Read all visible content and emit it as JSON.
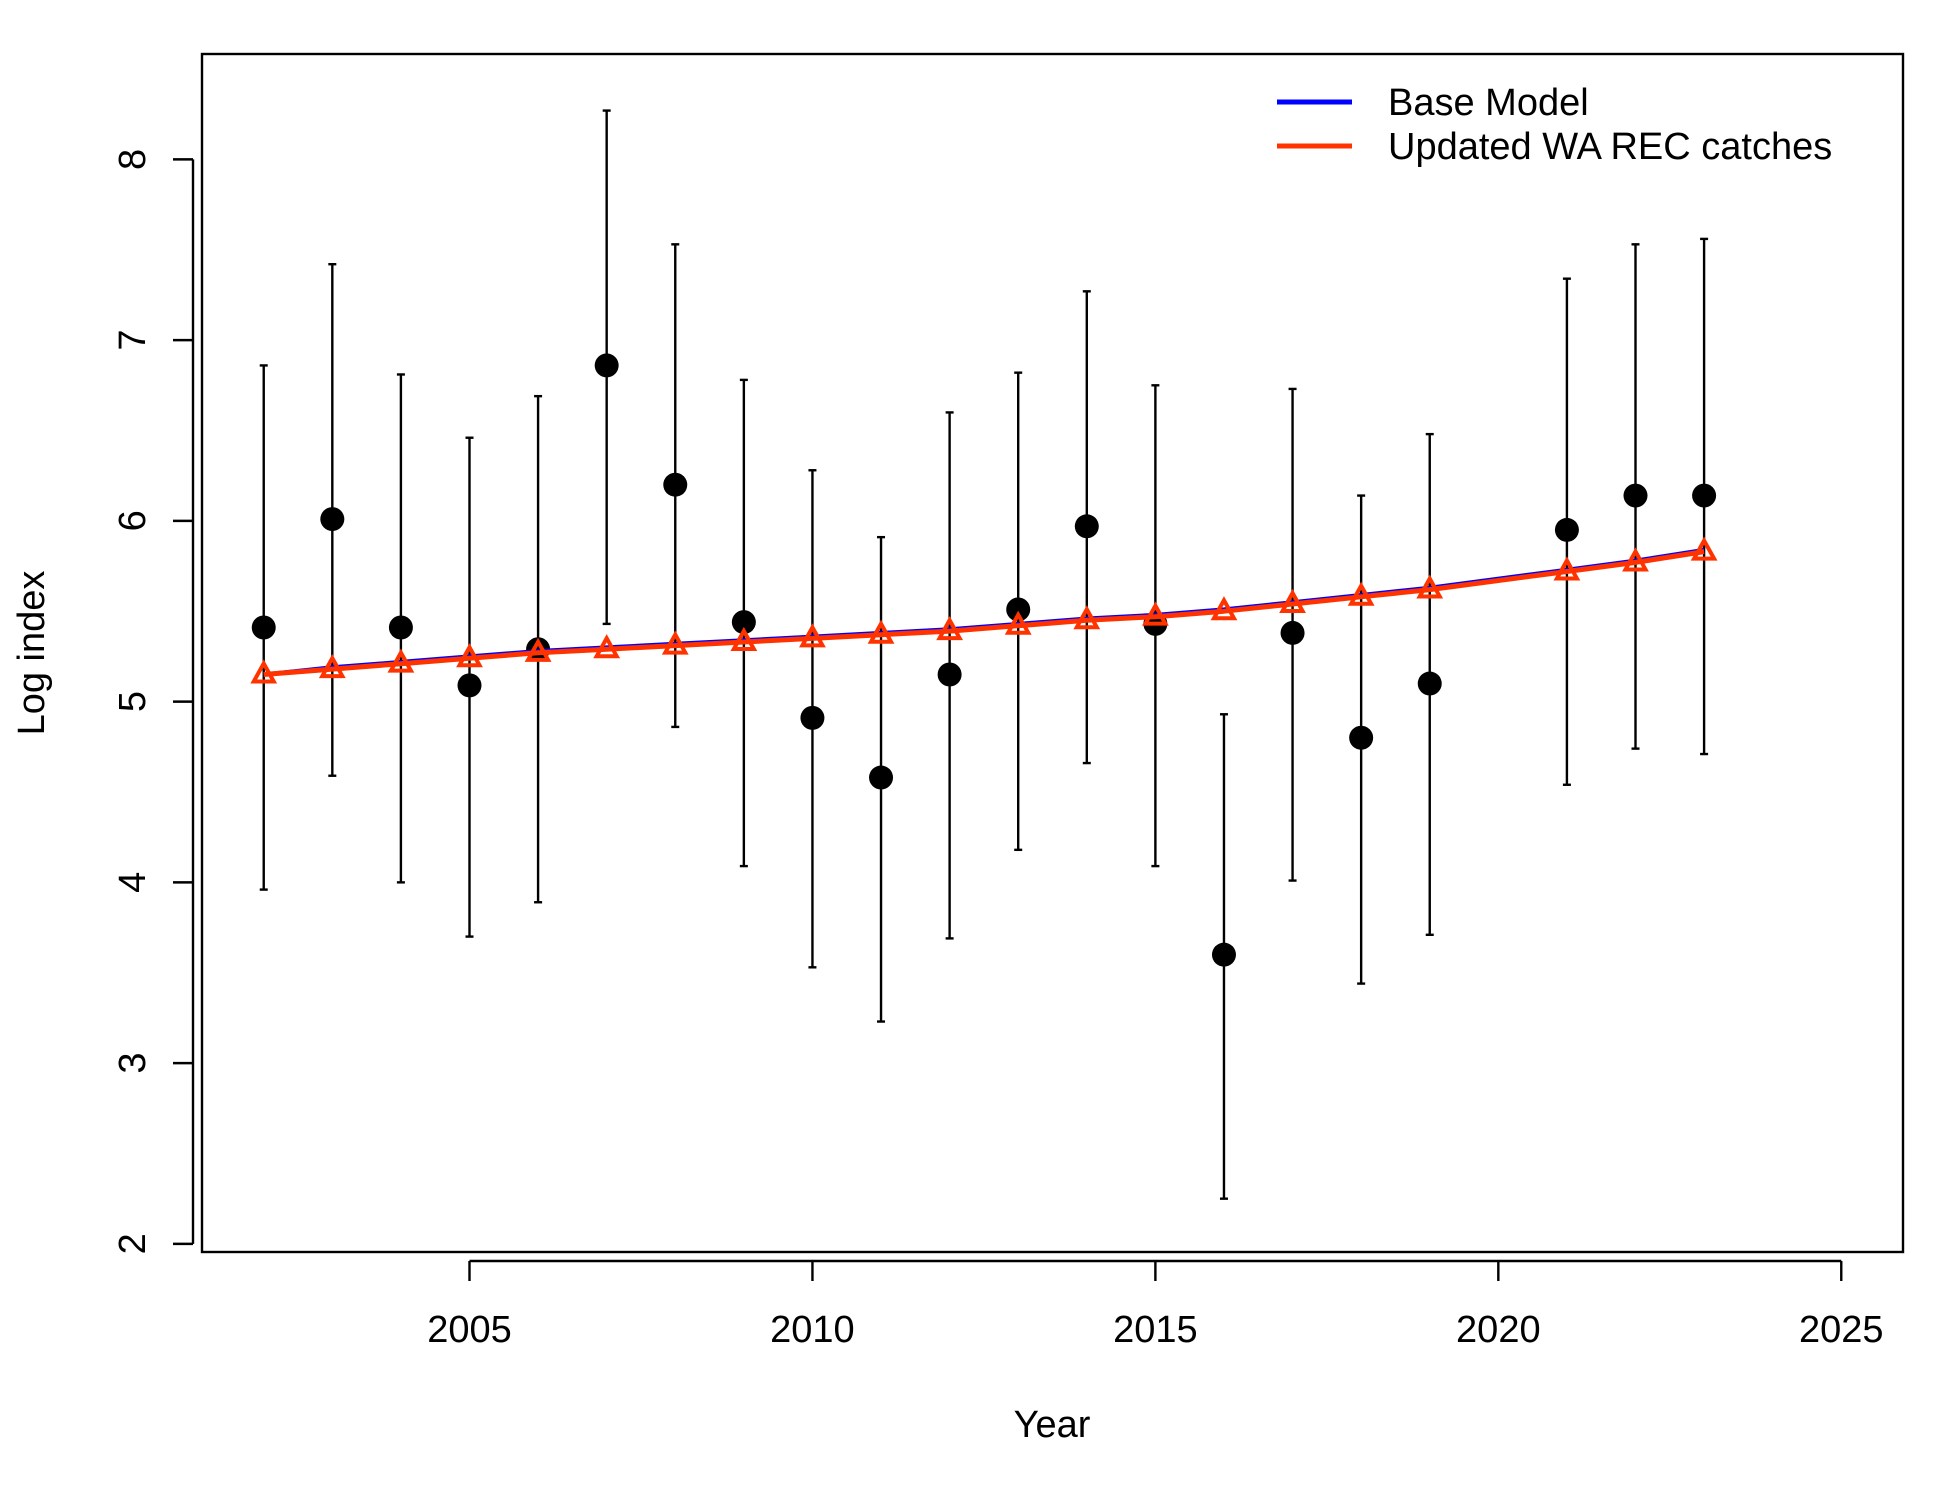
{
  "chart_data": {
    "type": "scatter",
    "xlabel": "Year",
    "ylabel": "Log index",
    "xlim": [
      2001.1,
      2025.9
    ],
    "ylim": [
      1.955,
      8.583
    ],
    "x_ticks": [
      2005,
      2010,
      2015,
      2020,
      2025
    ],
    "y_ticks": [
      2,
      3,
      4,
      5,
      6,
      7,
      8
    ],
    "grid": false,
    "legend_position": "top-right",
    "observed": {
      "marker": "filled-circle",
      "color": "#000000",
      "points": [
        {
          "year": 2002,
          "value": 5.41,
          "lower": 3.96,
          "upper": 6.86
        },
        {
          "year": 2003,
          "value": 6.01,
          "lower": 4.59,
          "upper": 7.42
        },
        {
          "year": 2004,
          "value": 5.41,
          "lower": 4.0,
          "upper": 6.81
        },
        {
          "year": 2005,
          "value": 5.09,
          "lower": 3.7,
          "upper": 6.46
        },
        {
          "year": 2006,
          "value": 5.29,
          "lower": 3.89,
          "upper": 6.69
        },
        {
          "year": 2007,
          "value": 6.86,
          "lower": 5.43,
          "upper": 8.27
        },
        {
          "year": 2008,
          "value": 6.2,
          "lower": 4.86,
          "upper": 7.53
        },
        {
          "year": 2009,
          "value": 5.44,
          "lower": 4.09,
          "upper": 6.78
        },
        {
          "year": 2010,
          "value": 4.91,
          "lower": 3.53,
          "upper": 6.28
        },
        {
          "year": 2011,
          "value": 4.58,
          "lower": 3.23,
          "upper": 5.91
        },
        {
          "year": 2012,
          "value": 5.15,
          "lower": 3.69,
          "upper": 6.6
        },
        {
          "year": 2013,
          "value": 5.51,
          "lower": 4.18,
          "upper": 6.82
        },
        {
          "year": 2014,
          "value": 5.97,
          "lower": 4.66,
          "upper": 7.27
        },
        {
          "year": 2015,
          "value": 5.43,
          "lower": 4.09,
          "upper": 6.75
        },
        {
          "year": 2016,
          "value": 3.6,
          "lower": 2.25,
          "upper": 4.93
        },
        {
          "year": 2017,
          "value": 5.38,
          "lower": 4.01,
          "upper": 6.73
        },
        {
          "year": 2018,
          "value": 4.8,
          "lower": 3.44,
          "upper": 6.14
        },
        {
          "year": 2019,
          "value": 5.1,
          "lower": 3.71,
          "upper": 6.48
        },
        {
          "year": 2021,
          "value": 5.95,
          "lower": 4.54,
          "upper": 7.34
        },
        {
          "year": 2022,
          "value": 6.14,
          "lower": 4.74,
          "upper": 7.53
        },
        {
          "year": 2023,
          "value": 6.14,
          "lower": 4.71,
          "upper": 7.56
        }
      ]
    },
    "series": [
      {
        "name": "Base Model",
        "color": "#0000FF",
        "type": "line",
        "x": [
          2002,
          2003,
          2004,
          2005,
          2006,
          2007,
          2008,
          2009,
          2010,
          2011,
          2012,
          2013,
          2014,
          2015,
          2016,
          2017,
          2018,
          2019,
          2021,
          2022,
          2023
        ],
        "values": [
          5.15,
          5.19,
          5.22,
          5.25,
          5.28,
          5.3,
          5.32,
          5.34,
          5.36,
          5.38,
          5.4,
          5.43,
          5.46,
          5.48,
          5.51,
          5.55,
          5.59,
          5.63,
          5.73,
          5.78,
          5.84
        ]
      },
      {
        "name": "Updated WA REC catches",
        "color": "#FF3300",
        "type": "line-triangle",
        "x": [
          2002,
          2003,
          2004,
          2005,
          2006,
          2007,
          2008,
          2009,
          2010,
          2011,
          2012,
          2013,
          2014,
          2015,
          2016,
          2017,
          2018,
          2019,
          2021,
          2022,
          2023
        ],
        "values": [
          5.15,
          5.18,
          5.21,
          5.24,
          5.27,
          5.29,
          5.31,
          5.33,
          5.35,
          5.37,
          5.39,
          5.42,
          5.45,
          5.47,
          5.5,
          5.54,
          5.58,
          5.62,
          5.72,
          5.77,
          5.83
        ]
      }
    ]
  }
}
